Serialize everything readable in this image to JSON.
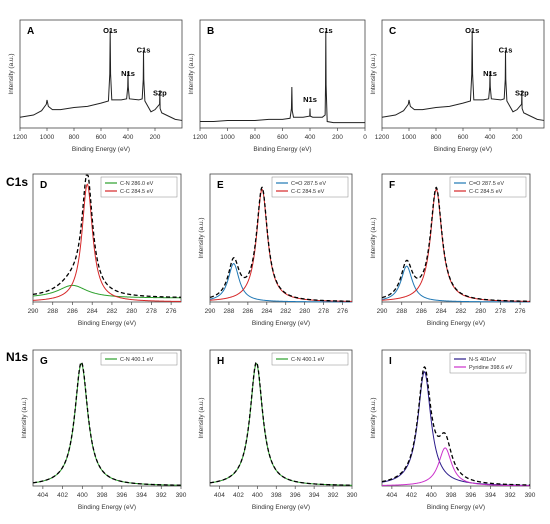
{
  "row_labels": [
    "C1s",
    "N1s"
  ],
  "chart_data": [
    {
      "panel": "A",
      "type": "line",
      "ylabel": "Intensity (a.u.)",
      "xlabel": "Binding Energy (eV)",
      "xlim": [
        1200,
        0
      ],
      "xticks": [
        1200,
        1000,
        800,
        600,
        400,
        200
      ],
      "xreverse": true,
      "ylim": [
        0,
        100
      ],
      "grid": false,
      "legend": null,
      "annotations": [
        {
          "text": "O1s",
          "x": 532,
          "y": 88
        },
        {
          "text": "N1s",
          "x": 400,
          "y": 48
        },
        {
          "text": "C1s",
          "x": 285,
          "y": 70
        },
        {
          "text": "S2p",
          "x": 164,
          "y": 30
        }
      ],
      "series": [
        {
          "name": "",
          "color": "#222222",
          "x": [
            1200,
            1100,
            1040,
            1005,
            1000,
            990,
            960,
            900,
            800,
            700,
            600,
            545,
            535,
            532,
            529,
            520,
            450,
            410,
            402,
            400,
            398,
            390,
            320,
            295,
            287,
            285,
            283,
            275,
            230,
            200,
            166,
            164,
            162,
            150,
            100,
            50,
            0
          ],
          "y": [
            10,
            12,
            16,
            22,
            26,
            20,
            17,
            17,
            19,
            20,
            23,
            25,
            50,
            90,
            50,
            26,
            26,
            27,
            38,
            52,
            38,
            27,
            26,
            27,
            45,
            72,
            45,
            25,
            15,
            17,
            22,
            34,
            18,
            14,
            11,
            8,
            7
          ]
        }
      ]
    },
    {
      "panel": "B",
      "type": "line",
      "ylabel": "Intensity (a.u.)",
      "xlabel": "Binding Energy (eV)",
      "xlim": [
        1200,
        0
      ],
      "xticks": [
        1200,
        1000,
        800,
        600,
        400,
        200,
        0
      ],
      "xreverse": true,
      "ylim": [
        0,
        100
      ],
      "grid": false,
      "legend": null,
      "annotations": [
        {
          "text": "N1s",
          "x": 400,
          "y": 24
        },
        {
          "text": "C1s",
          "x": 285,
          "y": 88
        }
      ],
      "series": [
        {
          "name": "",
          "color": "#222222",
          "x": [
            1200,
            1100,
            1000,
            900,
            800,
            700,
            600,
            545,
            535,
            532,
            529,
            520,
            450,
            402,
            400,
            398,
            380,
            310,
            290,
            287,
            285,
            283,
            275,
            230,
            150,
            50,
            0
          ],
          "y": [
            6,
            6,
            7,
            7,
            7,
            8,
            8,
            9,
            18,
            38,
            16,
            10,
            10,
            11,
            18,
            11,
            10,
            10,
            12,
            40,
            90,
            40,
            6,
            5,
            5,
            5,
            5
          ]
        }
      ]
    },
    {
      "panel": "C",
      "type": "line",
      "ylabel": "Intensity (a.u.)",
      "xlabel": "Binding Energy (eV)",
      "xlim": [
        1200,
        0
      ],
      "xticks": [
        1200,
        1000,
        800,
        600,
        400,
        200
      ],
      "xreverse": true,
      "ylim": [
        0,
        100
      ],
      "grid": false,
      "legend": null,
      "annotations": [
        {
          "text": "O1s",
          "x": 532,
          "y": 88
        },
        {
          "text": "N1s",
          "x": 400,
          "y": 48
        },
        {
          "text": "C1s",
          "x": 285,
          "y": 70
        },
        {
          "text": "S2p",
          "x": 164,
          "y": 30
        }
      ],
      "series": [
        {
          "name": "",
          "color": "#222222",
          "x": [
            1200,
            1100,
            1040,
            1005,
            1000,
            990,
            960,
            900,
            800,
            700,
            600,
            545,
            535,
            532,
            529,
            520,
            450,
            410,
            402,
            400,
            398,
            390,
            320,
            295,
            287,
            285,
            283,
            275,
            230,
            200,
            166,
            164,
            162,
            150,
            100,
            50,
            0
          ],
          "y": [
            10,
            12,
            16,
            22,
            26,
            20,
            17,
            17,
            19,
            20,
            23,
            25,
            50,
            90,
            50,
            26,
            26,
            27,
            38,
            52,
            38,
            27,
            26,
            27,
            45,
            72,
            45,
            25,
            15,
            17,
            22,
            34,
            18,
            14,
            11,
            8,
            7
          ]
        }
      ]
    },
    {
      "panel": "D",
      "type": "line",
      "ylabel": "",
      "xlabel": "Binding Energy (eV)",
      "xlim": [
        290,
        275
      ],
      "xticks": [
        290,
        288,
        286,
        284,
        282,
        280,
        278,
        276
      ],
      "xreverse": true,
      "ylim": [
        0,
        100
      ],
      "grid": false,
      "legend": "top-right",
      "series": [
        {
          "name": "C-N 286.0 eV",
          "color": "#2ca02c",
          "peaks": [
            {
              "center": 286.0,
              "height": 10,
              "width": 1.8
            }
          ],
          "baseline": 3
        },
        {
          "name": "C-C 284.5 eV",
          "color": "#d62728",
          "peaks": [
            {
              "center": 284.5,
              "height": 92,
              "width": 0.65
            }
          ],
          "baseline": 0
        },
        {
          "name": "",
          "color": "#000000",
          "dashed": true,
          "peaks": [
            {
              "center": 286.0,
              "height": 10,
              "width": 1.8
            },
            {
              "center": 284.5,
              "height": 92,
              "width": 0.65
            }
          ],
          "baseline": 3
        }
      ]
    },
    {
      "panel": "E",
      "type": "line",
      "ylabel": "Intensity (a.u.)",
      "xlabel": "Binding Energy (eV)",
      "xlim": [
        290,
        275
      ],
      "xticks": [
        290,
        288,
        286,
        284,
        282,
        280,
        278,
        276
      ],
      "xreverse": true,
      "ylim": [
        0,
        100
      ],
      "grid": false,
      "legend": "top-right",
      "series": [
        {
          "name": "C=O 287.5 eV",
          "color": "#1f77b4",
          "peaks": [
            {
              "center": 287.5,
              "height": 30,
              "width": 0.7
            }
          ],
          "baseline": 0
        },
        {
          "name": "C-C 284.5 eV",
          "color": "#d62728",
          "peaks": [
            {
              "center": 284.5,
              "height": 88,
              "width": 0.7
            }
          ],
          "baseline": 0
        },
        {
          "name": "",
          "color": "#000000",
          "dashed": true,
          "peaks": [
            {
              "center": 287.5,
              "height": 30,
              "width": 0.7
            },
            {
              "center": 284.5,
              "height": 88,
              "width": 0.7
            }
          ],
          "baseline": 0
        }
      ]
    },
    {
      "panel": "F",
      "type": "line",
      "ylabel": "Intensity (a.u.)",
      "xlabel": "Binding Energy (eV)",
      "xlim": [
        290,
        275
      ],
      "xticks": [
        290,
        288,
        286,
        284,
        282,
        280,
        278,
        276
      ],
      "xreverse": true,
      "ylim": [
        0,
        100
      ],
      "grid": false,
      "legend": "top-right",
      "series": [
        {
          "name": "C=O 287.5 eV",
          "color": "#1f77b4",
          "peaks": [
            {
              "center": 287.5,
              "height": 28,
              "width": 0.7
            }
          ],
          "baseline": 0
        },
        {
          "name": "C-C 284.5 eV",
          "color": "#d62728",
          "peaks": [
            {
              "center": 284.5,
              "height": 88,
              "width": 0.7
            }
          ],
          "baseline": 0
        },
        {
          "name": "",
          "color": "#000000",
          "dashed": true,
          "peaks": [
            {
              "center": 287.5,
              "height": 28,
              "width": 0.7
            },
            {
              "center": 284.5,
              "height": 88,
              "width": 0.7
            }
          ],
          "baseline": 0
        }
      ]
    },
    {
      "panel": "G",
      "type": "line",
      "ylabel": "Intensity (a.u.)",
      "xlabel": "Binding Energy (eV)",
      "xlim": [
        405,
        390
      ],
      "xticks": [
        404,
        402,
        400,
        398,
        396,
        394,
        392,
        390
      ],
      "xreverse": true,
      "ylim": [
        0,
        100
      ],
      "grid": false,
      "legend": "top-right",
      "series": [
        {
          "name": "C-N 400.1 eV",
          "color": "#2ca02c",
          "peaks": [
            {
              "center": 400.1,
              "height": 90,
              "width": 0.8
            }
          ],
          "baseline": 0
        },
        {
          "name": "",
          "color": "#000000",
          "dashed": true,
          "peaks": [
            {
              "center": 400.1,
              "height": 91,
              "width": 0.8
            }
          ],
          "baseline": 0
        }
      ]
    },
    {
      "panel": "H",
      "type": "line",
      "ylabel": "Intensity (a.u.)",
      "xlabel": "Binding Energy (eV)",
      "xlim": [
        405,
        390
      ],
      "xticks": [
        404,
        402,
        400,
        398,
        396,
        394,
        392,
        390
      ],
      "xreverse": true,
      "ylim": [
        0,
        100
      ],
      "grid": false,
      "legend": "top-right",
      "series": [
        {
          "name": "C-N 400.1 eV",
          "color": "#2ca02c",
          "peaks": [
            {
              "center": 400.1,
              "height": 90,
              "width": 0.8
            }
          ],
          "baseline": 0
        },
        {
          "name": "",
          "color": "#000000",
          "dashed": true,
          "peaks": [
            {
              "center": 400.1,
              "height": 91,
              "width": 0.8
            }
          ],
          "baseline": 0
        }
      ]
    },
    {
      "panel": "I",
      "type": "line",
      "ylabel": "Intensity (a.u.)",
      "xlabel": "Binding Energy (eV)",
      "xlim": [
        405,
        390
      ],
      "xticks": [
        404,
        402,
        400,
        398,
        396,
        394,
        392,
        390
      ],
      "xreverse": true,
      "ylim": [
        0,
        100
      ],
      "grid": false,
      "legend": "top-right",
      "series": [
        {
          "name": "N-S 401eV",
          "color": "#2a1a8a",
          "peaks": [
            {
              "center": 400.7,
              "height": 84,
              "width": 0.8
            }
          ],
          "baseline": 0
        },
        {
          "name": "Pyridine 398.6 eV",
          "color": "#cc33cc",
          "peaks": [
            {
              "center": 398.6,
              "height": 28,
              "width": 0.8
            }
          ],
          "baseline": 0
        },
        {
          "name": "",
          "color": "#000000",
          "dashed": true,
          "peaks": [
            {
              "center": 400.7,
              "height": 84,
              "width": 0.8
            },
            {
              "center": 398.6,
              "height": 28,
              "width": 0.8
            }
          ],
          "baseline": 0
        }
      ]
    }
  ]
}
